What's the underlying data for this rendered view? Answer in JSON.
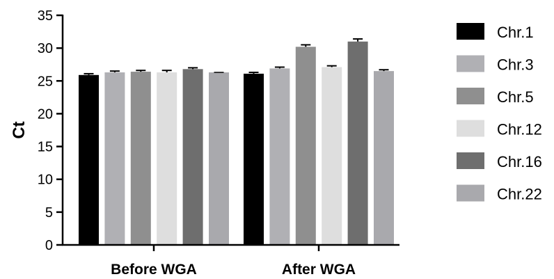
{
  "chart_data": {
    "type": "bar",
    "title": "",
    "xlabel": "",
    "ylabel": "Ct",
    "ylim": [
      0,
      35
    ],
    "yticks": [
      0,
      5,
      10,
      15,
      20,
      25,
      30,
      35
    ],
    "grid": false,
    "legend_position": "right",
    "categories": [
      "Before WGA",
      "After WGA"
    ],
    "series": [
      {
        "name": "Chr.1",
        "color": "#000000",
        "values": [
          25.9,
          26.1
        ],
        "errors": [
          0.2,
          0.2
        ]
      },
      {
        "name": "Chr.3",
        "color": "#b0b0b4",
        "values": [
          26.3,
          26.9
        ],
        "errors": [
          0.2,
          0.2
        ]
      },
      {
        "name": "Chr.5",
        "color": "#8f8f8f",
        "values": [
          26.4,
          30.2
        ],
        "errors": [
          0.2,
          0.3
        ]
      },
      {
        "name": "Chr.12",
        "color": "#dedede",
        "values": [
          26.3,
          27.1
        ],
        "errors": [
          0.3,
          0.2
        ]
      },
      {
        "name": "Chr.16",
        "color": "#6e6e6e",
        "values": [
          26.8,
          31.0
        ],
        "errors": [
          0.2,
          0.4
        ]
      },
      {
        "name": "Chr.22",
        "color": "#a9a9ad",
        "values": [
          26.3,
          26.5
        ],
        "errors": [
          0.0,
          0.2
        ]
      }
    ]
  }
}
